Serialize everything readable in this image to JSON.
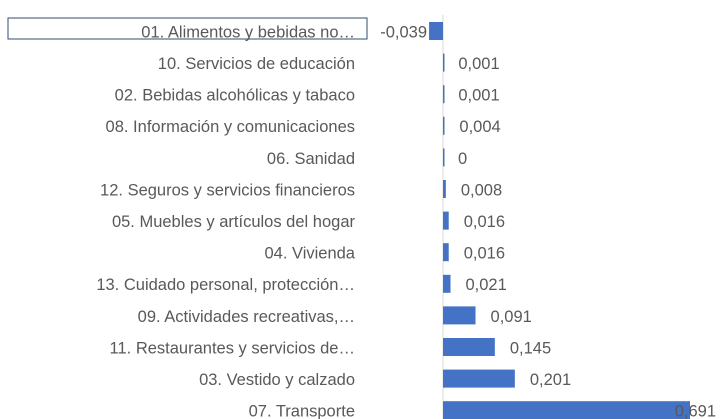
{
  "chart_data": {
    "type": "bar",
    "orientation": "horizontal",
    "color": "#4472c4",
    "categories": [
      "01. Alimentos y bebidas no…",
      "10. Servicios de educación",
      "02. Bebidas alcohólicas y tabaco",
      "08. Información y comunicaciones",
      "06. Sanidad",
      "12. Seguros y servicios financieros",
      "05. Muebles y artículos del hogar",
      "04. Vivienda",
      "13. Cuidado personal, protección…",
      "09. Actividades recreativas,…",
      "11. Restaurantes y servicios de…",
      "03. Vestido y calzado",
      "07. Transporte"
    ],
    "values": [
      -0.039,
      0.001,
      0.001,
      0.004,
      0,
      0.008,
      0.016,
      0.016,
      0.021,
      0.091,
      0.145,
      0.201,
      0.691
    ],
    "value_labels": [
      "-0,039",
      "0,001",
      "0,001",
      "0,004",
      "0",
      "0,008",
      "0,016",
      "0,016",
      "0,021",
      "0,091",
      "0,145",
      "0,201",
      "0,691"
    ]
  }
}
